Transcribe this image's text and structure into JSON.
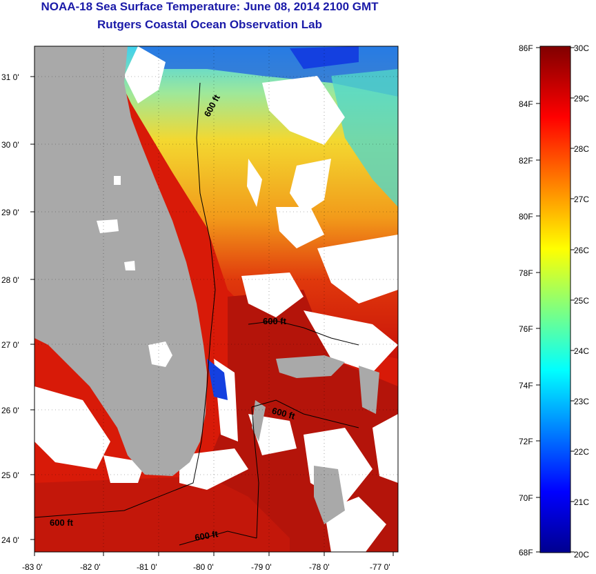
{
  "header": {
    "title": "NOAA-18 Sea Surface Temperature:  June 08, 2014 2100 GMT",
    "subtitle": "Rutgers Coastal Ocean Observation Lab"
  },
  "map": {
    "lat_ticks": [
      "24 0'",
      "25 0'",
      "26 0'",
      "27 0'",
      "28 0'",
      "29 0'",
      "30 0'",
      "31 0'"
    ],
    "lon_ticks": [
      "-83 0'",
      "-82 0'",
      "-81 0'",
      "-80 0'",
      "-79 0'",
      "-78 0'",
      "-77 0'"
    ],
    "contour_labels": [
      "600 ft",
      "600 ft",
      "600 ft",
      "600 ft",
      "600 ft"
    ],
    "colors": {
      "land": "#a9a9a9",
      "cloud": "#ffffff",
      "gulf": "#d81a08",
      "atlantic_north": "#f3c52a"
    }
  },
  "colorbar": {
    "f_labels": [
      "86F",
      "84F",
      "82F",
      "80F",
      "78F",
      "76F",
      "74F",
      "72F",
      "70F",
      "68F"
    ],
    "c_labels": [
      "30C",
      "29C",
      "28C",
      "27C",
      "26C",
      "25C",
      "24C",
      "23C",
      "22C",
      "21C",
      "20C"
    ],
    "range_f": [
      68,
      86
    ],
    "range_c": [
      20,
      30
    ]
  }
}
